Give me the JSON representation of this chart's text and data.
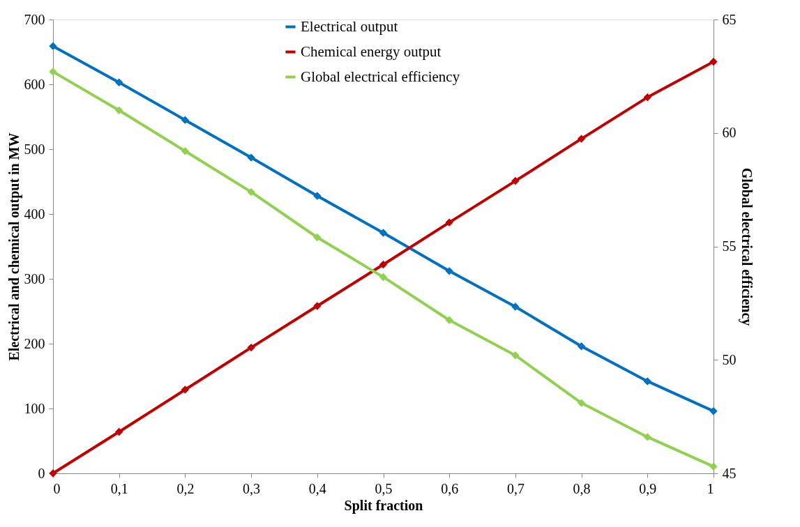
{
  "chart_data": {
    "type": "line",
    "xlabel": "Split fraction",
    "ylabel": "Electrical and chemical output in MW",
    "y2label": "Global electrical efficiency",
    "x": [
      0,
      0.1,
      0.2,
      0.3,
      0.4,
      0.5,
      0.6,
      0.7,
      0.8,
      0.9,
      1
    ],
    "series": [
      {
        "name": "Electrical output",
        "color": "#0070c0",
        "values": [
          659,
          603,
          545,
          487,
          428,
          371,
          312,
          257,
          196,
          142,
          96
        ]
      },
      {
        "name": "Chemical energy output",
        "color": "#c00000",
        "values": [
          0,
          64,
          129,
          194,
          258,
          322,
          387,
          451,
          516,
          580,
          635
        ]
      },
      {
        "name": "Global electrical efficiency",
        "color": "#92d050",
        "axis": "y2",
        "values": [
          62.7,
          61.0,
          59.2,
          57.4,
          55.4,
          53.65,
          51.75,
          50.2,
          48.1,
          46.6,
          45.3
        ]
      }
    ],
    "xlim": [
      0,
      1
    ],
    "xticks": [
      0,
      {
        "value": 0.1,
        "label": "0,1"
      },
      {
        "value": 0.2,
        "label": "0,2"
      },
      {
        "value": 0.3,
        "label": "0,3"
      },
      {
        "value": 0.4,
        "label": "0,4"
      },
      {
        "value": 0.5,
        "label": "0,5"
      },
      {
        "value": 0.6,
        "label": "0,6"
      },
      {
        "value": 0.7,
        "label": "0,7"
      },
      {
        "value": 0.8,
        "label": "0,8"
      },
      {
        "value": 0.9,
        "label": "0,9"
      },
      1
    ],
    "ylim": [
      0,
      700
    ],
    "yticks": [
      0,
      100,
      200,
      300,
      400,
      500,
      600,
      700
    ],
    "y2lim": [
      45,
      65
    ],
    "y2ticks": [
      45,
      50,
      55,
      60,
      65
    ],
    "grid": false,
    "legend": "top",
    "marker": "diamond",
    "line_style": "solid"
  }
}
